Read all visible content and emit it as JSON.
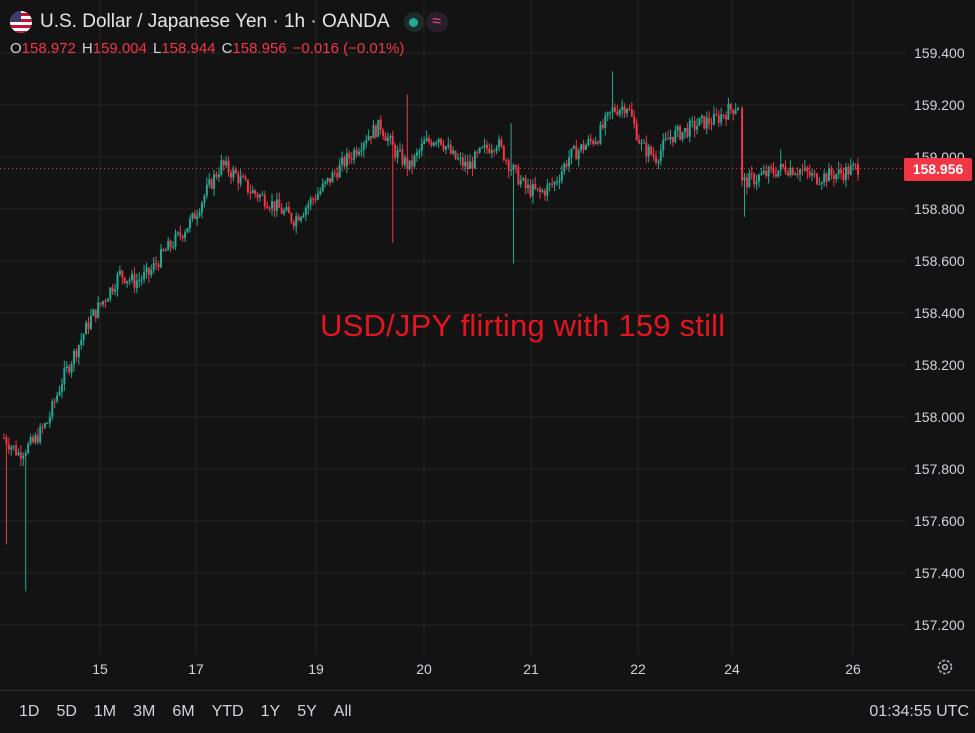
{
  "header": {
    "title": "U.S. Dollar / Japanese Yen · 1h · OANDA",
    "wave_symbol": "≈"
  },
  "ohlc": {
    "o_label": "O",
    "o_value": "158.972",
    "h_label": "H",
    "h_value": "159.004",
    "l_label": "L",
    "l_value": "158.944",
    "c_label": "C",
    "c_value": "158.956",
    "change": "−0.016 (−0.01%)"
  },
  "annotation": "USD/JPY flirting with 159 still",
  "last_price_tag": "158.956",
  "range_buttons": [
    "1D",
    "5D",
    "1M",
    "3M",
    "6M",
    "YTD",
    "1Y",
    "5Y",
    "All"
  ],
  "clock": "01:34:55 UTC",
  "colors": {
    "up": "#22ab94",
    "down": "#f23645",
    "background": "#131313",
    "grid": "#262626",
    "annotation": "#e3151f"
  },
  "icons": {
    "settings": "gear-icon",
    "flag": "us-flag-icon"
  },
  "chart_data": {
    "type": "candlestick",
    "y_ticks": [
      "159.400",
      "159.200",
      "159.000",
      "158.800",
      "158.600",
      "158.400",
      "158.200",
      "158.000",
      "157.800",
      "157.600",
      "157.400",
      "157.200"
    ],
    "x_ticks": [
      "15",
      "17",
      "19",
      "20",
      "21",
      "22",
      "24",
      "26"
    ],
    "ylim": [
      157.14,
      159.58
    ],
    "last_price": 158.956,
    "grid": true,
    "anchors": [
      [
        0,
        157.92
      ],
      [
        6,
        157.86
      ],
      [
        12,
        157.9
      ],
      [
        18,
        157.98
      ],
      [
        24,
        158.14
      ],
      [
        30,
        158.26
      ],
      [
        36,
        158.38
      ],
      [
        42,
        158.46
      ],
      [
        48,
        158.55
      ],
      [
        54,
        158.52
      ],
      [
        60,
        158.55
      ],
      [
        66,
        158.63
      ],
      [
        72,
        158.69
      ],
      [
        78,
        158.76
      ],
      [
        84,
        158.87
      ],
      [
        90,
        158.97
      ],
      [
        96,
        158.93
      ],
      [
        102,
        158.87
      ],
      [
        108,
        158.84
      ],
      [
        114,
        158.8
      ],
      [
        120,
        158.76
      ],
      [
        126,
        158.82
      ],
      [
        132,
        158.88
      ],
      [
        138,
        158.95
      ],
      [
        144,
        159.01
      ],
      [
        150,
        159.08
      ],
      [
        156,
        159.12
      ],
      [
        162,
        159.02
      ],
      [
        168,
        158.96
      ],
      [
        174,
        159.05
      ],
      [
        180,
        159.08
      ],
      [
        186,
        159.0
      ],
      [
        192,
        158.96
      ],
      [
        198,
        159.02
      ],
      [
        204,
        159.06
      ],
      [
        210,
        158.96
      ],
      [
        216,
        158.88
      ],
      [
        222,
        158.86
      ],
      [
        228,
        158.9
      ],
      [
        234,
        159.0
      ],
      [
        240,
        159.04
      ],
      [
        246,
        159.08
      ],
      [
        252,
        159.18
      ],
      [
        258,
        159.2
      ],
      [
        264,
        159.04
      ],
      [
        270,
        159.0
      ],
      [
        276,
        159.08
      ],
      [
        282,
        159.1
      ],
      [
        288,
        159.13
      ],
      [
        294,
        159.14
      ],
      [
        300,
        159.18
      ],
      [
        304,
        159.2
      ],
      [
        310,
        158.9
      ],
      [
        316,
        158.92
      ],
      [
        322,
        158.94
      ],
      [
        328,
        158.96
      ],
      [
        334,
        158.95
      ],
      [
        340,
        158.92
      ],
      [
        346,
        158.93
      ],
      [
        352,
        158.94
      ],
      [
        358,
        158.96
      ]
    ],
    "spikes": [
      {
        "i": 1,
        "low": 157.51
      },
      {
        "i": 9,
        "low": 157.33
      },
      {
        "i": 167,
        "high": 159.24
      },
      {
        "i": 161,
        "low": 158.67
      },
      {
        "i": 211,
        "low": 158.59
      },
      {
        "i": 210,
        "high": 159.13
      },
      {
        "i": 252,
        "high": 159.33
      },
      {
        "i": 311,
        "low": 158.77
      },
      {
        "i": 326,
        "high": 159.03
      }
    ]
  }
}
